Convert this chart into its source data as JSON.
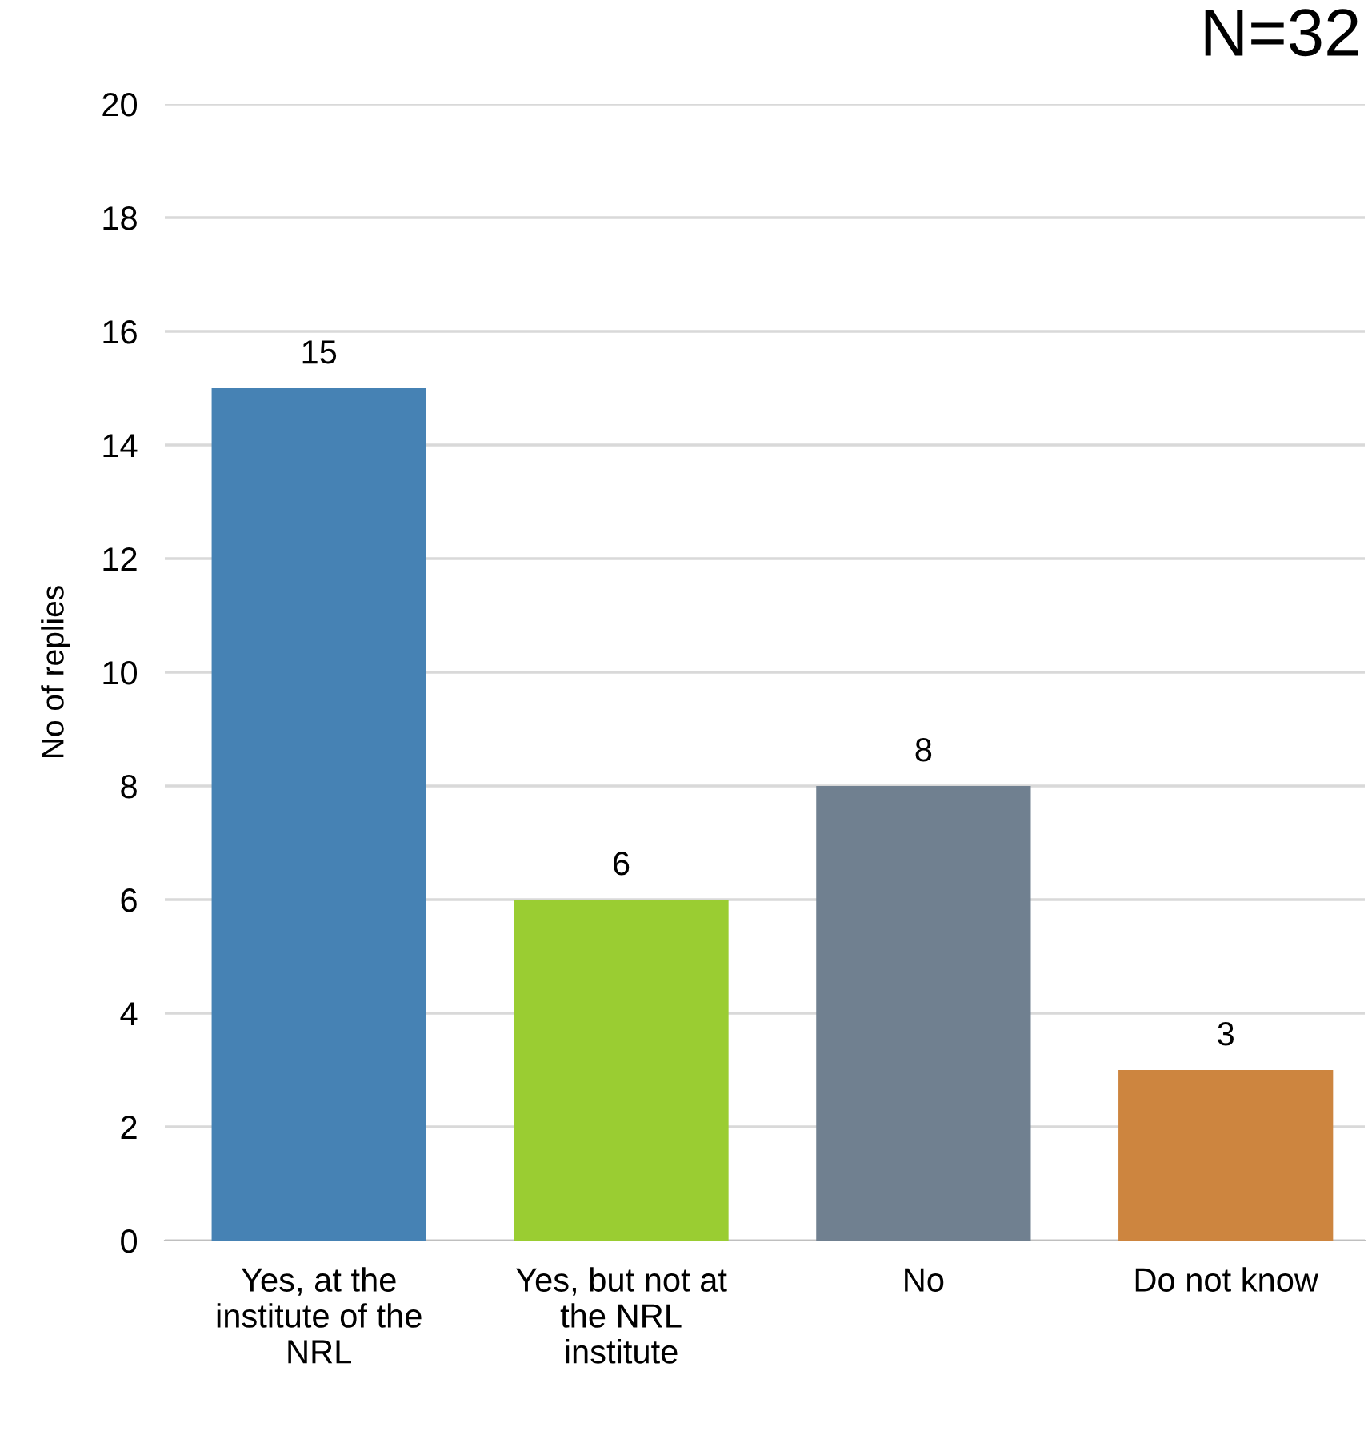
{
  "chart_data": {
    "type": "bar",
    "title": "N=32",
    "ylabel": "No of replies",
    "categories": [
      "Yes, at the\ninstitute of the\nNRL",
      "Yes, but not at\nthe NRL\ninstitute",
      "No",
      "Do not know"
    ],
    "values": [
      15,
      6,
      8,
      3
    ],
    "colors": [
      "#4682b4",
      "#9acd32",
      "#708090",
      "#cd853f"
    ],
    "ylim": [
      0,
      20
    ],
    "yticks": [
      0,
      2,
      4,
      6,
      8,
      10,
      12,
      14,
      16,
      18,
      20
    ],
    "grid": "y",
    "data_labels": true
  }
}
